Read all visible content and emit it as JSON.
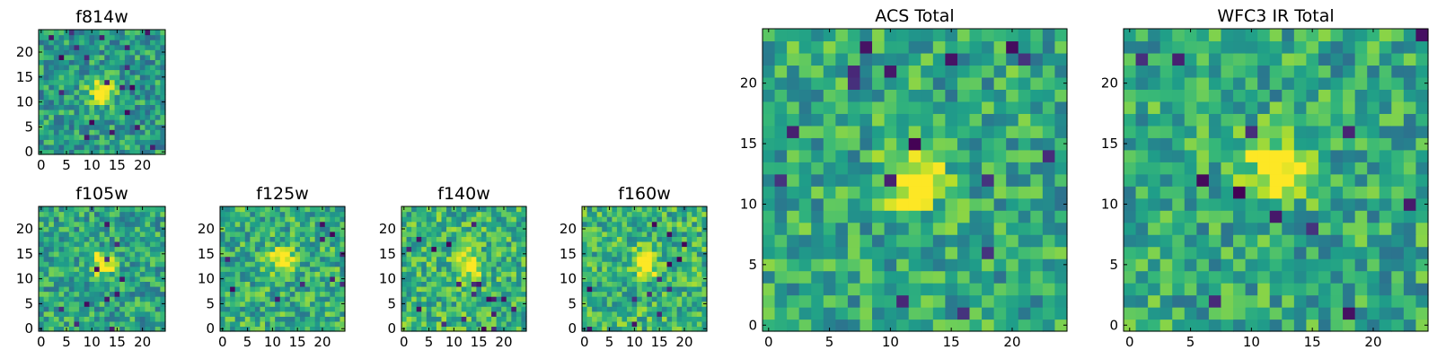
{
  "chart_data": [
    {
      "type": "heatmap",
      "title": "f814w",
      "grid_size": 25,
      "colormap": "viridis",
      "xticks": [
        "0",
        "5",
        "10",
        "15",
        "20"
      ],
      "yticks": [
        "0",
        "5",
        "10",
        "15",
        "20"
      ],
      "xlim": [
        0,
        24
      ],
      "ylim": [
        0,
        24
      ],
      "peak": {
        "x": 12,
        "y": 12,
        "value": 1.0
      },
      "background_level": 0.55
    },
    {
      "type": "heatmap",
      "title": "f105w",
      "grid_size": 25,
      "colormap": "viridis",
      "xticks": [
        "0",
        "5",
        "10",
        "15",
        "20"
      ],
      "yticks": [
        "0",
        "5",
        "10",
        "15",
        "20"
      ],
      "xlim": [
        0,
        24
      ],
      "ylim": [
        0,
        24
      ],
      "peak": {
        "x": 12,
        "y": 13,
        "value": 1.0
      },
      "background_level": 0.58
    },
    {
      "type": "heatmap",
      "title": "f125w",
      "grid_size": 25,
      "colormap": "viridis",
      "xticks": [
        "0",
        "5",
        "10",
        "15",
        "20"
      ],
      "yticks": [
        "0",
        "5",
        "10",
        "15",
        "20"
      ],
      "xlim": [
        0,
        24
      ],
      "ylim": [
        0,
        24
      ],
      "peak": {
        "x": 12,
        "y": 14,
        "value": 1.0
      },
      "background_level": 0.62
    },
    {
      "type": "heatmap",
      "title": "f140w",
      "grid_size": 25,
      "colormap": "viridis",
      "xticks": [
        "0",
        "5",
        "10",
        "15",
        "20"
      ],
      "yticks": [
        "0",
        "5",
        "10",
        "15",
        "20"
      ],
      "xlim": [
        0,
        24
      ],
      "ylim": [
        0,
        24
      ],
      "peak": {
        "x": 13,
        "y": 13,
        "value": 1.0
      },
      "background_level": 0.65
    },
    {
      "type": "heatmap",
      "title": "f160w",
      "grid_size": 25,
      "colormap": "viridis",
      "xticks": [
        "0",
        "5",
        "10",
        "15",
        "20"
      ],
      "yticks": [
        "0",
        "5",
        "10",
        "15",
        "20"
      ],
      "xlim": [
        0,
        24
      ],
      "ylim": [
        0,
        24
      ],
      "peak": {
        "x": 12,
        "y": 13,
        "value": 1.0
      },
      "background_level": 0.65
    },
    {
      "type": "heatmap",
      "title": "ACS Total",
      "grid_size": 25,
      "colormap": "viridis",
      "xticks": [
        "0",
        "5",
        "10",
        "15",
        "20"
      ],
      "yticks": [
        "0",
        "5",
        "10",
        "15",
        "20"
      ],
      "xlim": [
        0,
        24
      ],
      "ylim": [
        0,
        24
      ],
      "peak": {
        "x": 12,
        "y": 12,
        "value": 1.0
      },
      "background_level": 0.6
    },
    {
      "type": "heatmap",
      "title": "WFC3 IR Total",
      "grid_size": 25,
      "colormap": "viridis",
      "xticks": [
        "0",
        "5",
        "10",
        "15",
        "20"
      ],
      "yticks": [
        "0",
        "5",
        "10",
        "15",
        "20"
      ],
      "xlim": [
        0,
        24
      ],
      "ylim": [
        0,
        24
      ],
      "peak": {
        "x": 12,
        "y": 13,
        "value": 1.0
      },
      "background_level": 0.6
    }
  ]
}
